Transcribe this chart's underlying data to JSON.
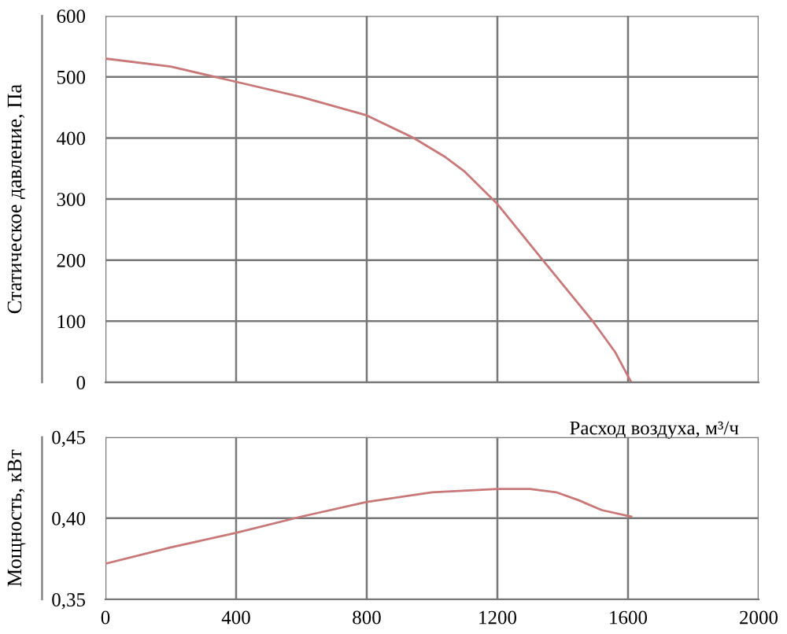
{
  "chart_data": [
    {
      "type": "line",
      "ylabel": "Статическое давление, Па",
      "xlim": [
        0,
        2000
      ],
      "ylim": [
        0,
        600
      ],
      "xticks": [
        0,
        400,
        800,
        1200,
        1600,
        2000
      ],
      "yticks": [
        0,
        100,
        200,
        300,
        400,
        500,
        600
      ],
      "grid": true,
      "tick_labels": "y",
      "marker": "none",
      "line_style": "solid",
      "series": [
        {
          "color": "#c87878",
          "x": [
            0,
            200,
            400,
            600,
            800,
            944,
            1037,
            1100,
            1200,
            1339,
            1492,
            1560,
            1610
          ],
          "values": [
            530,
            517,
            492,
            467,
            437,
            400,
            370,
            345,
            292,
            200,
            100,
            50,
            0
          ]
        }
      ]
    },
    {
      "type": "line",
      "ylabel": "Мощность, кВт",
      "xlabel": "Расход воздуха, м³/ч",
      "xlim": [
        0,
        2000
      ],
      "ylim": [
        0.35,
        0.45
      ],
      "xticks": [
        0,
        400,
        800,
        1200,
        1600,
        2000
      ],
      "yticks": [
        {
          "value": 0.35,
          "label": "0,35"
        },
        {
          "value": 0.4,
          "label": "0,40"
        },
        {
          "value": 0.45,
          "label": "0,45"
        }
      ],
      "grid": true,
      "marker": "none",
      "line_style": "solid",
      "series": [
        {
          "color": "#c87878",
          "x": [
            0,
            200,
            400,
            600,
            800,
            1000,
            1200,
            1300,
            1380,
            1450,
            1520,
            1610
          ],
          "values": [
            0.372,
            0.382,
            0.391,
            0.401,
            0.41,
            0.416,
            0.418,
            0.418,
            0.416,
            0.411,
            0.405,
            0.401
          ]
        }
      ]
    }
  ]
}
